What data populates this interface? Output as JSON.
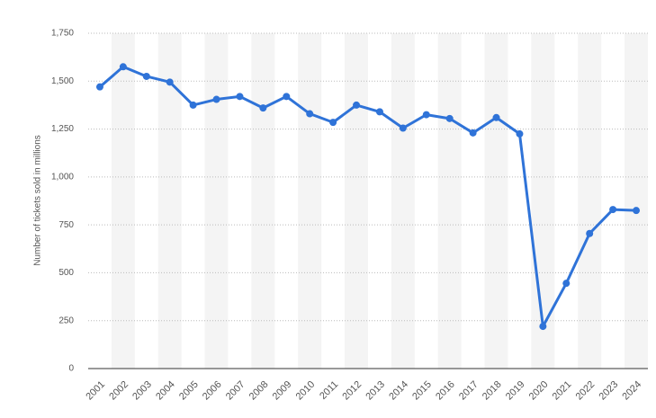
{
  "chart_data": {
    "type": "line",
    "y_label": "Number of tickets sold in millions",
    "categories": [
      "2001",
      "2002",
      "2003",
      "2004",
      "2005",
      "2006",
      "2007",
      "2008",
      "2009",
      "2010",
      "2011",
      "2012",
      "2013",
      "2014",
      "2015",
      "2016",
      "2017",
      "2018",
      "2019",
      "2020",
      "2021",
      "2022",
      "2023",
      "2024"
    ],
    "series": [
      {
        "color": "#2f73d8",
        "values": [
          1470,
          1575,
          1525,
          1495,
          1375,
          1405,
          1420,
          1360,
          1420,
          1330,
          1285,
          1375,
          1340,
          1255,
          1325,
          1305,
          1230,
          1310,
          1225,
          220,
          445,
          705,
          830,
          825
        ]
      }
    ],
    "ylim": [
      0,
      1750
    ],
    "yticks": [
      0,
      250,
      500,
      750,
      {
        "value": 1000,
        "label": "1,000"
      },
      {
        "value": 1250,
        "label": "1,250"
      },
      {
        "value": 1500,
        "label": "1,500"
      },
      {
        "value": 1750,
        "label": "1,750"
      }
    ],
    "grid": true
  }
}
